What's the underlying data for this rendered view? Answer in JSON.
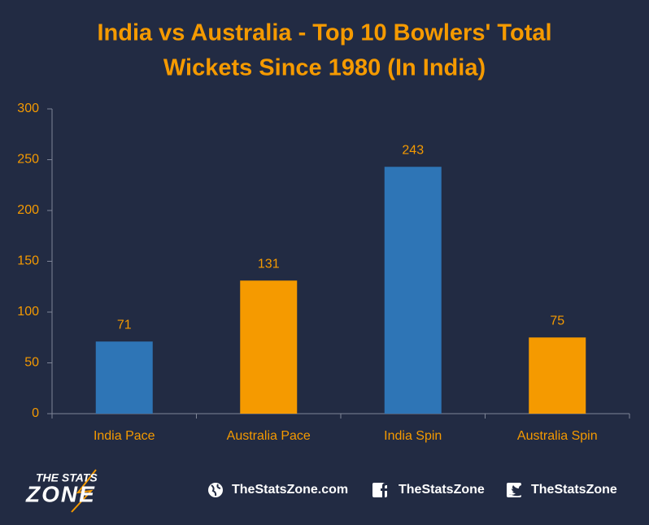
{
  "chart_data": {
    "type": "bar",
    "title": [
      "India vs Australia - Top 10 Bowlers' Total",
      "Wickets Since 1980 (In India)"
    ],
    "categories": [
      "India Pace",
      "Australia Pace",
      "India Spin",
      "Australia Spin"
    ],
    "values": [
      71,
      131,
      243,
      75
    ],
    "colors": [
      "#2e75b6",
      "#f59a00",
      "#2e75b6",
      "#f59a00"
    ],
    "ylim": [
      0,
      300
    ],
    "yticks": [
      0,
      50,
      100,
      150,
      200,
      250,
      300
    ],
    "grid": false
  },
  "footer": {
    "logo": [
      "THE STATS",
      "ZONE"
    ],
    "links": [
      "TheStatsZone.com",
      "TheStatsZone",
      "TheStatsZone"
    ]
  }
}
